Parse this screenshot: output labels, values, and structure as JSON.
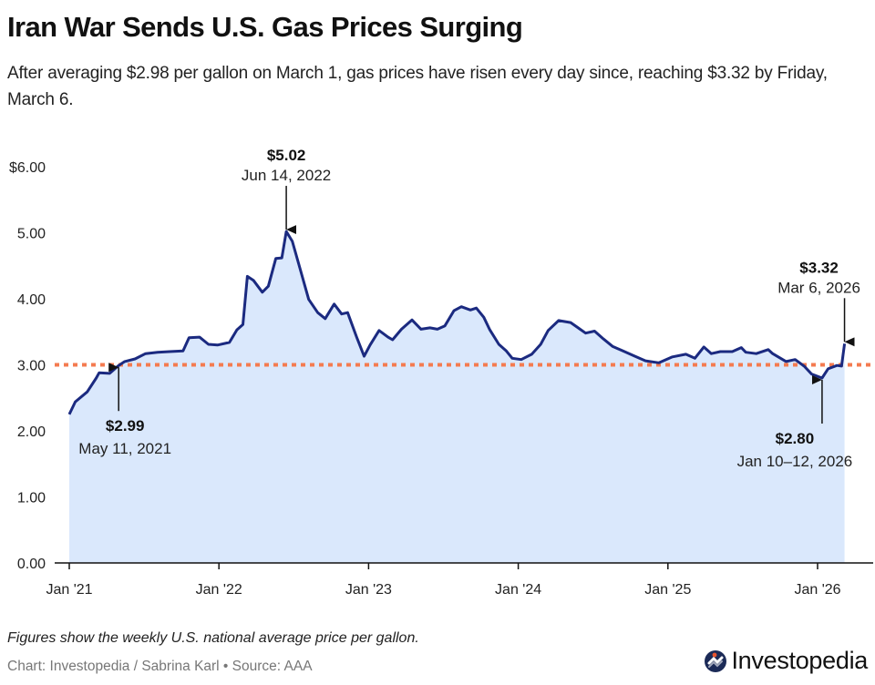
{
  "header": {
    "title": "Iran War Sends U.S. Gas Prices Surging",
    "subtitle": "After averaging $2.98 per gallon on March 1, gas prices have risen every day since, reaching $3.32 by Friday, March 6."
  },
  "footer": {
    "note": "Figures show the weekly U.S. national average price per gallon.",
    "credit": "Chart: Investopedia / Sabrina Karl • Source: AAA",
    "logo_text": "Investopedia",
    "logo_icon": "investopedia-logo-icon"
  },
  "colors": {
    "line": "#1b2a80",
    "fill": "#dae8fc",
    "reference_line": "#f47b50",
    "axis": "#111111",
    "logo_dot": "#e8542f"
  },
  "chart_data": {
    "type": "area",
    "title": "Iran War Sends U.S. Gas Prices Surging",
    "xlabel": "",
    "ylabel": "",
    "x_unit": "year (decimal)",
    "xlim": [
      2021.0,
      2026.18
    ],
    "ylim": [
      0,
      6
    ],
    "grid": false,
    "y_ticks": [
      0,
      1,
      2,
      3,
      4,
      5,
      6
    ],
    "y_tick_labels": [
      "0.00",
      "1.00",
      "2.00",
      "3.00",
      "4.00",
      "5.00",
      "$6.00"
    ],
    "x_ticks": [
      2021,
      2022,
      2023,
      2024,
      2025,
      2026
    ],
    "x_tick_labels": [
      "Jan '21",
      "Jan '22",
      "Jan '23",
      "Jan '24",
      "Jan '25",
      "Jan '26"
    ],
    "reference_line": {
      "value": 3.0,
      "style": "dotted"
    },
    "series": [
      {
        "name": "U.S. national average gas price ($/gal)",
        "x": [
          2021.0,
          2021.04,
          2021.12,
          2021.18,
          2021.2,
          2021.27,
          2021.33,
          2021.37,
          2021.44,
          2021.51,
          2021.59,
          2021.67,
          2021.76,
          2021.8,
          2021.87,
          2021.93,
          2021.99,
          2022.07,
          2022.12,
          2022.16,
          2022.19,
          2022.23,
          2022.29,
          2022.33,
          2022.38,
          2022.42,
          2022.45,
          2022.49,
          2022.54,
          2022.6,
          2022.66,
          2022.71,
          2022.77,
          2022.82,
          2022.86,
          2022.92,
          2022.97,
          2023.01,
          2023.07,
          2023.13,
          2023.16,
          2023.22,
          2023.29,
          2023.35,
          2023.41,
          2023.46,
          2023.51,
          2023.57,
          2023.62,
          2023.68,
          2023.72,
          2023.77,
          2023.81,
          2023.87,
          2023.92,
          2023.96,
          2024.02,
          2024.09,
          2024.15,
          2024.2,
          2024.27,
          2024.35,
          2024.4,
          2024.45,
          2024.51,
          2024.57,
          2024.63,
          2024.7,
          2024.78,
          2024.85,
          2024.94,
          2025.03,
          2025.12,
          2025.18,
          2025.24,
          2025.29,
          2025.35,
          2025.43,
          2025.49,
          2025.52,
          2025.59,
          2025.67,
          2025.7,
          2025.79,
          2025.85,
          2025.91,
          2025.96,
          2026.03,
          2026.07,
          2026.13,
          2026.16,
          2026.18
        ],
        "values": [
          2.25,
          2.44,
          2.59,
          2.8,
          2.88,
          2.87,
          2.99,
          3.05,
          3.09,
          3.17,
          3.19,
          3.2,
          3.21,
          3.41,
          3.42,
          3.31,
          3.3,
          3.34,
          3.53,
          3.61,
          4.34,
          4.28,
          4.1,
          4.19,
          4.61,
          4.62,
          5.02,
          4.87,
          4.47,
          3.99,
          3.79,
          3.7,
          3.92,
          3.77,
          3.79,
          3.42,
          3.13,
          3.3,
          3.52,
          3.42,
          3.38,
          3.54,
          3.68,
          3.54,
          3.56,
          3.54,
          3.59,
          3.82,
          3.88,
          3.83,
          3.86,
          3.72,
          3.53,
          3.31,
          3.21,
          3.1,
          3.08,
          3.16,
          3.31,
          3.52,
          3.67,
          3.64,
          3.56,
          3.48,
          3.51,
          3.39,
          3.28,
          3.21,
          3.13,
          3.06,
          3.03,
          3.12,
          3.16,
          3.1,
          3.27,
          3.17,
          3.2,
          3.2,
          3.26,
          3.19,
          3.17,
          3.23,
          3.17,
          3.05,
          3.08,
          2.98,
          2.86,
          2.8,
          2.94,
          2.99,
          2.98,
          3.32
        ]
      }
    ],
    "annotations": [
      {
        "value_label": "$2.99",
        "date_label": "May 11, 2021",
        "x": 2021.33,
        "y": 2.99,
        "arrow": "up",
        "text_position": "below"
      },
      {
        "value_label": "$5.02",
        "date_label": "Jun 14, 2022",
        "x": 2022.45,
        "y": 5.02,
        "arrow": "down",
        "text_position": "above"
      },
      {
        "value_label": "$2.80",
        "date_label": "Jan 10–12, 2026",
        "x": 2026.03,
        "y": 2.8,
        "arrow": "up",
        "text_position": "below"
      },
      {
        "value_label": "$3.32",
        "date_label": "Mar 6, 2026",
        "x": 2026.18,
        "y": 3.32,
        "arrow": "down",
        "text_position": "above"
      }
    ]
  }
}
